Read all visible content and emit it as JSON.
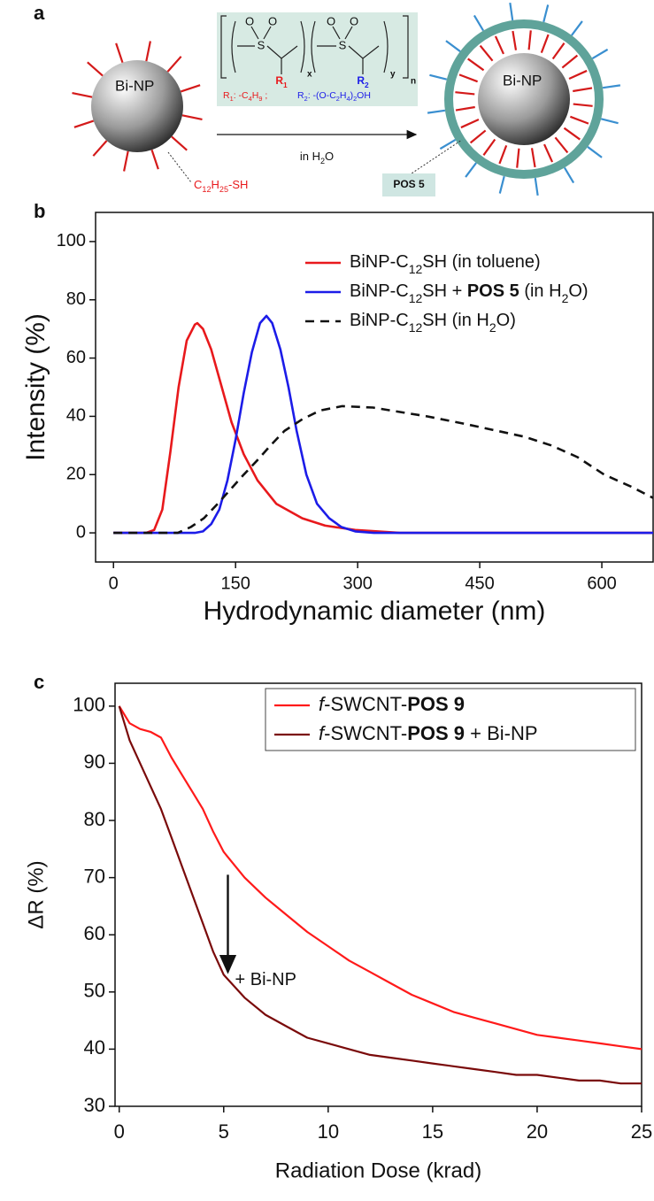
{
  "figure_a": {
    "panel_label": "a",
    "particle_label": "Bi-NP",
    "ligand_label": "C12H25-SH",
    "atoms": [
      "S",
      "O",
      "O",
      "S",
      "O",
      "O"
    ],
    "subscripts": [
      "x",
      "y",
      "n"
    ],
    "r_groups": [
      "R1",
      "R2"
    ],
    "r1_def": "R1: -C4H9 ;",
    "r2_def": "R2: -(O-C2H4)2OH",
    "condition": "in H2O",
    "coated_label": "Bi-NP",
    "shell_label": "POS 5"
  },
  "chart_data": [
    {
      "type": "line",
      "panel_label": "b",
      "xlabel": "Hydrodynamic diameter (nm)",
      "ylabel": "Intensity (%)",
      "xlim": [
        -22,
        663
      ],
      "ylim": [
        -10,
        110
      ],
      "xticks": [
        0,
        150,
        300,
        450,
        600
      ],
      "yticks": [
        0,
        20,
        40,
        60,
        80,
        100
      ],
      "legend": "upper right",
      "legend_box": false,
      "series": [
        {
          "name": "BiNP-C12SH (in toluene)",
          "color": "#e8191c",
          "dash": false,
          "x": [
            0,
            40,
            50,
            60,
            70,
            80,
            90,
            100,
            103,
            110,
            120,
            133,
            145,
            160,
            177,
            200,
            232,
            260,
            297,
            352,
            663
          ],
          "values": [
            0,
            0,
            1,
            8,
            28,
            50,
            66,
            71.5,
            72,
            70,
            63,
            50,
            38,
            27,
            18,
            10,
            5,
            2.5,
            1,
            0,
            0
          ]
        },
        {
          "name": "BiNP-C12SH + POS 5 (in H2O)",
          "color": "#1c1ce8",
          "dash": false,
          "x": [
            0,
            100,
            110,
            120,
            130,
            140,
            150,
            160,
            170,
            180,
            188,
            195,
            205,
            215,
            225,
            237,
            250,
            265,
            280,
            297,
            320,
            663
          ],
          "values": [
            0,
            0,
            0.5,
            3,
            8,
            18,
            32,
            48,
            62,
            72,
            74.5,
            72,
            63,
            50,
            35,
            20,
            10,
            5,
            2,
            0.5,
            0,
            0
          ]
        },
        {
          "name": "BiNP-C12SH (in H2O)",
          "color": "#111111",
          "dash": true,
          "x": [
            0,
            79,
            95,
            111,
            128,
            144,
            160,
            177,
            193,
            210,
            232,
            254,
            281,
            319,
            352,
            385,
            430,
            472,
            505,
            538,
            570,
            603,
            635,
            663
          ],
          "values": [
            0,
            0,
            2,
            5,
            10,
            15,
            20,
            25,
            30,
            35,
            39,
            42,
            43.5,
            43,
            41.5,
            40,
            37.5,
            35,
            33,
            30,
            26,
            20,
            16,
            12
          ]
        }
      ]
    },
    {
      "type": "line",
      "panel_label": "c",
      "xlabel": "Radiation Dose (krad)",
      "ylabel": "ΔR (%)",
      "xlim": [
        -0.2,
        25
      ],
      "ylim": [
        30,
        104
      ],
      "xticks": [
        0,
        5,
        10,
        15,
        20,
        25
      ],
      "yticks": [
        30,
        40,
        50,
        60,
        70,
        80,
        90,
        100
      ],
      "legend": "upper right",
      "legend_box": true,
      "annotations": [
        "+ Bi-NP"
      ],
      "series": [
        {
          "name": "f-SWCNT-POS 9",
          "color": "#ff1a1a",
          "dash": false,
          "x": [
            0,
            0.5,
            1,
            1.5,
            2,
            2.5,
            3,
            3.5,
            4,
            4.5,
            5,
            6,
            7,
            8,
            9,
            10,
            11,
            12,
            13,
            14,
            15,
            16,
            17,
            18,
            19,
            20,
            21,
            22,
            23,
            24,
            25
          ],
          "values": [
            100,
            97,
            96,
            95.5,
            94.5,
            91,
            88,
            85,
            82,
            78,
            74.5,
            70,
            66.5,
            63.5,
            60.5,
            58,
            55.5,
            53.5,
            51.5,
            49.5,
            48,
            46.5,
            45.5,
            44.5,
            43.5,
            42.5,
            42,
            41.5,
            41,
            40.5,
            40
          ]
        },
        {
          "name": "f-SWCNT-POS 9 + Bi-NP",
          "color": "#7a0a0a",
          "dash": false,
          "x": [
            0,
            0.5,
            1,
            1.5,
            2,
            2.5,
            3,
            3.5,
            4,
            4.5,
            5,
            6,
            7,
            8,
            9,
            10,
            11,
            12,
            13,
            14,
            15,
            16,
            17,
            18,
            19,
            20,
            21,
            22,
            23,
            24,
            25
          ],
          "values": [
            100,
            94,
            90,
            86,
            82,
            77,
            72,
            67,
            62,
            57,
            53,
            49,
            46,
            44,
            42,
            41,
            40,
            39,
            38.5,
            38,
            37.5,
            37,
            36.5,
            36,
            35.5,
            35.5,
            35,
            34.5,
            34.5,
            34,
            34
          ]
        }
      ]
    }
  ]
}
